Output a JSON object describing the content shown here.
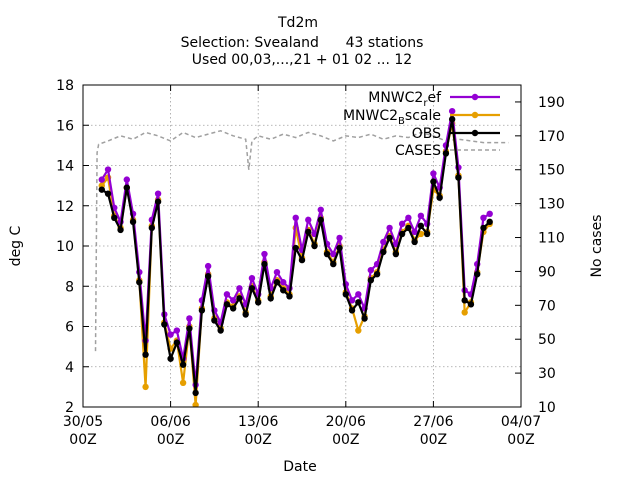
{
  "chart_data": {
    "type": "line",
    "title": "Td2m",
    "subtitle_lines": [
      "Selection: Svealand      43 stations",
      "Used 00,03,...,21 + 01 02 ... 12"
    ],
    "xlabel": "Date",
    "ylabel": "deg C",
    "y2label": "No cases",
    "xlim": [
      "2023-05-30T00:00",
      "2023-07-04T00:00"
    ],
    "ylim": [
      2,
      18
    ],
    "y2lim": [
      10,
      200
    ],
    "x_ticks": [
      {
        "date": "2023-05-30T00:00",
        "line1": "30/05",
        "line2": "00Z"
      },
      {
        "date": "2023-06-06T00:00",
        "line1": "06/06",
        "line2": "00Z"
      },
      {
        "date": "2023-06-13T00:00",
        "line1": "13/06",
        "line2": "00Z"
      },
      {
        "date": "2023-06-20T00:00",
        "line1": "20/06",
        "line2": "00Z"
      },
      {
        "date": "2023-06-27T00:00",
        "line1": "27/06",
        "line2": "00Z"
      },
      {
        "date": "2023-07-04T00:00",
        "line1": "04/07",
        "line2": "00Z"
      }
    ],
    "y_ticks": [
      2,
      4,
      6,
      8,
      10,
      12,
      14,
      16,
      18
    ],
    "y2_ticks": [
      10,
      30,
      50,
      70,
      90,
      110,
      130,
      150,
      170,
      190
    ],
    "grid": true,
    "legend_position": "top-right",
    "legend": [
      {
        "main": "MNWC2",
        "sub": "r",
        "tail": "ef",
        "color": "#9400d3",
        "series": "MNWC2_ref"
      },
      {
        "main": "MNWC2",
        "sub": "B",
        "tail": "scale",
        "color": "#e69f00",
        "series": "MNWC2_Bscale"
      },
      {
        "main": "OBS",
        "sub": "",
        "tail": "",
        "color": "#000000",
        "series": "OBS"
      },
      {
        "main": "CASES",
        "sub": "",
        "tail": "",
        "color": "#a0a0a0",
        "series": "CASES"
      }
    ],
    "series": [
      {
        "name": "OBS",
        "color": "#000000",
        "axis": "y",
        "x": [
          "2023-05-31T12:00",
          "2023-06-01T00:00",
          "2023-06-01T12:00",
          "2023-06-02T00:00",
          "2023-06-02T12:00",
          "2023-06-03T00:00",
          "2023-06-03T12:00",
          "2023-06-04T00:00",
          "2023-06-04T12:00",
          "2023-06-05T00:00",
          "2023-06-05T12:00",
          "2023-06-06T00:00",
          "2023-06-06T12:00",
          "2023-06-07T00:00",
          "2023-06-07T12:00",
          "2023-06-08T00:00",
          "2023-06-08T12:00",
          "2023-06-09T00:00",
          "2023-06-09T12:00",
          "2023-06-10T00:00",
          "2023-06-10T12:00",
          "2023-06-11T00:00",
          "2023-06-11T12:00",
          "2023-06-12T00:00",
          "2023-06-12T12:00",
          "2023-06-13T00:00",
          "2023-06-13T12:00",
          "2023-06-14T00:00",
          "2023-06-14T12:00",
          "2023-06-15T00:00",
          "2023-06-15T12:00",
          "2023-06-16T00:00",
          "2023-06-16T12:00",
          "2023-06-17T00:00",
          "2023-06-17T12:00",
          "2023-06-18T00:00",
          "2023-06-18T12:00",
          "2023-06-19T00:00",
          "2023-06-19T12:00",
          "2023-06-20T00:00",
          "2023-06-20T12:00",
          "2023-06-21T00:00",
          "2023-06-21T12:00",
          "2023-06-22T00:00",
          "2023-06-22T12:00",
          "2023-06-23T00:00",
          "2023-06-23T12:00",
          "2023-06-24T00:00",
          "2023-06-24T12:00",
          "2023-06-25T00:00",
          "2023-06-25T12:00",
          "2023-06-26T00:00",
          "2023-06-26T12:00",
          "2023-06-27T00:00",
          "2023-06-27T12:00",
          "2023-06-28T00:00",
          "2023-06-28T12:00",
          "2023-06-29T00:00",
          "2023-06-29T12:00",
          "2023-06-30T00:00",
          "2023-06-30T12:00",
          "2023-07-01T00:00",
          "2023-07-01T12:00"
        ],
        "values": [
          12.8,
          12.6,
          11.4,
          10.8,
          12.9,
          11.2,
          8.2,
          4.6,
          10.9,
          12.2,
          6.1,
          4.4,
          5.2,
          4.1,
          5.9,
          2.7,
          6.8,
          8.5,
          6.3,
          5.8,
          7.1,
          6.9,
          7.4,
          6.6,
          7.9,
          7.2,
          9.1,
          7.4,
          8.2,
          7.8,
          7.5,
          9.9,
          9.3,
          10.7,
          10.0,
          11.3,
          9.6,
          9.1,
          9.9,
          7.6,
          6.8,
          7.2,
          6.4,
          8.3,
          8.6,
          9.7,
          10.4,
          9.6,
          10.6,
          10.9,
          10.2,
          11.0,
          10.6,
          13.2,
          12.4,
          14.6,
          16.3,
          13.4,
          7.3,
          7.1,
          8.6,
          10.9,
          11.2
        ]
      },
      {
        "name": "MNWC2_ref",
        "color": "#9400d3",
        "axis": "y",
        "x": [
          "2023-05-31T12:00",
          "2023-06-01T00:00",
          "2023-06-01T12:00",
          "2023-06-02T00:00",
          "2023-06-02T12:00",
          "2023-06-03T00:00",
          "2023-06-03T12:00",
          "2023-06-04T00:00",
          "2023-06-04T12:00",
          "2023-06-05T00:00",
          "2023-06-05T12:00",
          "2023-06-06T00:00",
          "2023-06-06T12:00",
          "2023-06-07T00:00",
          "2023-06-07T12:00",
          "2023-06-08T00:00",
          "2023-06-08T12:00",
          "2023-06-09T00:00",
          "2023-06-09T12:00",
          "2023-06-10T00:00",
          "2023-06-10T12:00",
          "2023-06-11T00:00",
          "2023-06-11T12:00",
          "2023-06-12T00:00",
          "2023-06-12T12:00",
          "2023-06-13T00:00",
          "2023-06-13T12:00",
          "2023-06-14T00:00",
          "2023-06-14T12:00",
          "2023-06-15T00:00",
          "2023-06-15T12:00",
          "2023-06-16T00:00",
          "2023-06-16T12:00",
          "2023-06-17T00:00",
          "2023-06-17T12:00",
          "2023-06-18T00:00",
          "2023-06-18T12:00",
          "2023-06-19T00:00",
          "2023-06-19T12:00",
          "2023-06-20T00:00",
          "2023-06-20T12:00",
          "2023-06-21T00:00",
          "2023-06-21T12:00",
          "2023-06-22T00:00",
          "2023-06-22T12:00",
          "2023-06-23T00:00",
          "2023-06-23T12:00",
          "2023-06-24T00:00",
          "2023-06-24T12:00",
          "2023-06-25T00:00",
          "2023-06-25T12:00",
          "2023-06-26T00:00",
          "2023-06-26T12:00",
          "2023-06-27T00:00",
          "2023-06-27T12:00",
          "2023-06-28T00:00",
          "2023-06-28T12:00",
          "2023-06-29T00:00",
          "2023-06-29T12:00",
          "2023-06-30T00:00",
          "2023-06-30T12:00",
          "2023-07-01T00:00",
          "2023-07-01T12:00"
        ],
        "values": [
          13.3,
          13.8,
          11.9,
          11.2,
          13.3,
          11.6,
          8.7,
          5.3,
          11.3,
          12.6,
          6.6,
          5.6,
          5.8,
          4.4,
          6.4,
          3.1,
          7.3,
          9.0,
          6.8,
          6.2,
          7.6,
          7.3,
          7.9,
          7.1,
          8.4,
          7.6,
          9.6,
          7.9,
          8.7,
          8.2,
          7.9,
          11.4,
          9.8,
          11.3,
          10.6,
          11.8,
          10.1,
          9.6,
          10.4,
          8.1,
          7.3,
          7.6,
          6.9,
          8.8,
          9.1,
          10.2,
          10.9,
          10.1,
          11.1,
          11.4,
          10.7,
          11.5,
          11.1,
          13.6,
          12.9,
          15.0,
          16.7,
          13.9,
          7.8,
          7.6,
          9.1,
          11.4,
          11.6
        ]
      },
      {
        "name": "MNWC2_Bscale",
        "color": "#e69f00",
        "axis": "y",
        "x": [
          "2023-05-31T12:00",
          "2023-06-01T00:00",
          "2023-06-01T12:00",
          "2023-06-02T00:00",
          "2023-06-02T12:00",
          "2023-06-03T00:00",
          "2023-06-03T12:00",
          "2023-06-04T00:00",
          "2023-06-04T12:00",
          "2023-06-05T00:00",
          "2023-06-05T12:00",
          "2023-06-06T00:00",
          "2023-06-06T12:00",
          "2023-06-07T00:00",
          "2023-06-07T12:00",
          "2023-06-08T00:00",
          "2023-06-08T12:00",
          "2023-06-09T00:00",
          "2023-06-09T12:00",
          "2023-06-10T00:00",
          "2023-06-10T12:00",
          "2023-06-11T00:00",
          "2023-06-11T12:00",
          "2023-06-12T00:00",
          "2023-06-12T12:00",
          "2023-06-13T00:00",
          "2023-06-13T12:00",
          "2023-06-14T00:00",
          "2023-06-14T12:00",
          "2023-06-15T00:00",
          "2023-06-15T12:00",
          "2023-06-16T00:00",
          "2023-06-16T12:00",
          "2023-06-17T00:00",
          "2023-06-17T12:00",
          "2023-06-18T00:00",
          "2023-06-18T12:00",
          "2023-06-19T00:00",
          "2023-06-19T12:00",
          "2023-06-20T00:00",
          "2023-06-20T12:00",
          "2023-06-21T00:00",
          "2023-06-21T12:00",
          "2023-06-22T00:00",
          "2023-06-22T12:00",
          "2023-06-23T00:00",
          "2023-06-23T12:00",
          "2023-06-24T00:00",
          "2023-06-24T12:00",
          "2023-06-25T00:00",
          "2023-06-25T12:00",
          "2023-06-26T00:00",
          "2023-06-26T12:00",
          "2023-06-27T00:00",
          "2023-06-27T12:00",
          "2023-06-28T00:00",
          "2023-06-28T12:00",
          "2023-06-29T00:00",
          "2023-06-29T12:00",
          "2023-06-30T00:00",
          "2023-06-30T12:00",
          "2023-07-01T00:00",
          "2023-07-01T12:00"
        ],
        "values": [
          13.0,
          13.4,
          11.5,
          10.9,
          12.9,
          11.3,
          8.3,
          3.0,
          11.0,
          12.3,
          6.2,
          4.9,
          5.3,
          3.2,
          6.0,
          2.1,
          6.9,
          8.6,
          6.4,
          5.9,
          7.2,
          7.0,
          7.5,
          6.7,
          8.0,
          7.3,
          9.2,
          7.5,
          8.3,
          7.9,
          7.6,
          10.9,
          9.4,
          10.8,
          10.1,
          11.4,
          9.7,
          9.2,
          10.0,
          7.7,
          6.9,
          5.8,
          6.5,
          8.4,
          8.7,
          9.8,
          10.5,
          9.7,
          10.7,
          11.0,
          10.3,
          10.6,
          10.7,
          12.8,
          12.5,
          14.7,
          16.1,
          13.5,
          6.7,
          7.2,
          8.7,
          10.7,
          11.1
        ]
      },
      {
        "name": "CASES",
        "color": "#a0a0a0",
        "axis": "y2",
        "x": [
          "2023-05-31T00:00",
          "2023-05-31T03:00",
          "2023-05-31T06:00",
          "2023-06-01T00:00",
          "2023-06-02T00:00",
          "2023-06-03T00:00",
          "2023-06-04T00:00",
          "2023-06-05T00:00",
          "2023-06-06T00:00",
          "2023-06-07T00:00",
          "2023-06-08T00:00",
          "2023-06-09T00:00",
          "2023-06-10T00:00",
          "2023-06-11T00:00",
          "2023-06-12T00:00",
          "2023-06-12T06:00",
          "2023-06-12T12:00",
          "2023-06-13T00:00",
          "2023-06-14T00:00",
          "2023-06-15T00:00",
          "2023-06-16T00:00",
          "2023-06-17T00:00",
          "2023-06-18T00:00",
          "2023-06-19T00:00",
          "2023-06-20T00:00",
          "2023-06-21T00:00",
          "2023-06-22T00:00",
          "2023-06-23T00:00",
          "2023-06-24T00:00",
          "2023-06-25T00:00",
          "2023-06-26T00:00",
          "2023-06-27T00:00",
          "2023-06-28T00:00",
          "2023-06-29T00:00",
          "2023-06-30T00:00",
          "2023-07-01T00:00",
          "2023-07-02T00:00",
          "2023-07-03T00:00"
        ],
        "values": [
          43,
          160,
          165,
          167,
          170,
          168,
          172,
          170,
          167,
          172,
          169,
          171,
          173,
          170,
          168,
          150,
          167,
          170,
          168,
          171,
          169,
          172,
          170,
          167,
          170,
          169,
          171,
          168,
          170,
          169,
          172,
          170,
          167,
          168,
          167,
          166,
          166,
          166
        ]
      }
    ]
  }
}
